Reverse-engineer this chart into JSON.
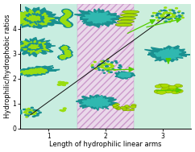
{
  "xlabel": "Length of hydrophilic linear arms",
  "ylabel": "Hydrophilic/hydrophobic ratios",
  "xlim": [
    0.5,
    3.5
  ],
  "ylim": [
    0,
    5.0
  ],
  "xticks": [
    1,
    2,
    3
  ],
  "yticks": [
    0,
    1,
    2,
    3,
    4
  ],
  "bg_color": "#ffffff",
  "region1_color": "#c8ede0",
  "region2_color": "#ead8ea",
  "region3_color": "#cceedd",
  "diagonal_line": [
    [
      0.68,
      0.55
    ],
    [
      3.12,
      4.58
    ]
  ],
  "line_color": "#111111",
  "arrow_color": "#55cc00",
  "tick_fontsize": 5.5,
  "label_fontsize": 6.0,
  "teal": "#1a9090",
  "teal_light": "#30b8b0",
  "lime": "#99dd11",
  "yellow_green": "#aadd00",
  "dark_teal": "#0d6060"
}
